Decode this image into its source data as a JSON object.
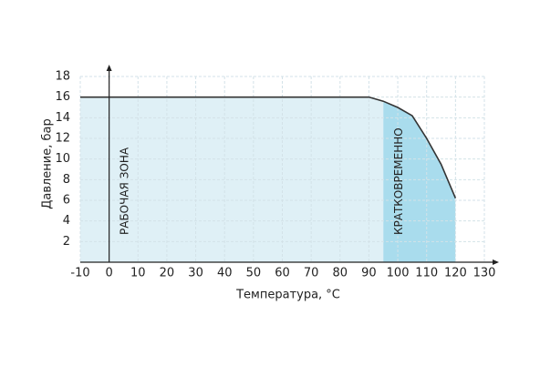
{
  "chart_data": {
    "type": "area",
    "xlabel": "Температура, °С",
    "ylabel": "Давление, бар",
    "x": [
      -10,
      90,
      95,
      100,
      105,
      110,
      115,
      120
    ],
    "series": [
      {
        "color": "#333333",
        "values": [
          16,
          16,
          15.6,
          15.0,
          14.2,
          12.0,
          9.5,
          6.2
        ]
      }
    ],
    "zones": [
      {
        "label": "РАБОЧАЯ ЗОНА",
        "from": -10,
        "to": 95,
        "color": "#dff0f6"
      },
      {
        "label": "КРАТКОВРЕМЕННО",
        "from": 95,
        "to": 120,
        "color": "#a9dced"
      }
    ],
    "xlim": [
      -10,
      130
    ],
    "xticks": [
      -10,
      0,
      10,
      20,
      30,
      40,
      50,
      60,
      70,
      80,
      90,
      100,
      110,
      120,
      130
    ],
    "ylim": [
      0,
      18
    ],
    "yticks": [
      2,
      4,
      6,
      8,
      10,
      12,
      14,
      16,
      18
    ],
    "grid": true
  }
}
